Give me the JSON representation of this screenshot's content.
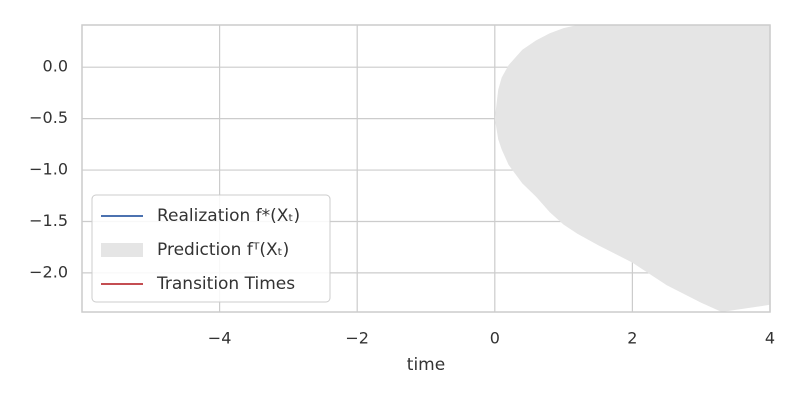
{
  "chart_data": {
    "type": "area",
    "xlabel": "time",
    "x": [
      0,
      0.05,
      0.1,
      0.2,
      0.4,
      0.6,
      0.8,
      1.0,
      1.2,
      1.5,
      2,
      2.5,
      3,
      3.3,
      3.5,
      4
    ],
    "series": [
      {
        "name": "Realization f*(Xₜ)",
        "color": "#4c72b0",
        "kind": "line"
      },
      {
        "name": "Prediction fᵀ(Xₜ)",
        "color": "#e5e5e5",
        "kind": "band",
        "upper": [
          -0.5,
          -0.22,
          -0.1,
          0.02,
          0.17,
          0.26,
          0.33,
          0.38,
          0.41,
          0.45,
          0.45,
          0.45,
          0.45,
          0.45,
          0.45,
          0.45
        ],
        "lower": [
          -0.5,
          -0.7,
          -0.8,
          -0.95,
          -1.13,
          -1.26,
          -1.41,
          -1.53,
          -1.62,
          -1.73,
          -1.9,
          -2.12,
          -2.29,
          -2.38,
          -2.36,
          -2.31
        ]
      },
      {
        "name": "Transition Times",
        "color": "#c44e52",
        "kind": "line"
      }
    ],
    "xlim": [
      -6,
      4
    ],
    "ylim": [
      -2.38,
      0.41
    ],
    "xticks": [
      {
        "value": -4,
        "label": "−4"
      },
      {
        "value": -2,
        "label": "−2"
      },
      {
        "value": 0,
        "label": "0"
      },
      {
        "value": 2,
        "label": "2"
      },
      {
        "value": 4,
        "label": "4"
      }
    ],
    "yticks": [
      {
        "value": 0,
        "label": "0.0"
      },
      {
        "value": -0.5,
        "label": "−0.5"
      },
      {
        "value": -1,
        "label": "−1.0"
      },
      {
        "value": -1.5,
        "label": "−1.5"
      },
      {
        "value": -2,
        "label": "−2.0"
      }
    ],
    "grid": true,
    "legend": "lower left"
  }
}
